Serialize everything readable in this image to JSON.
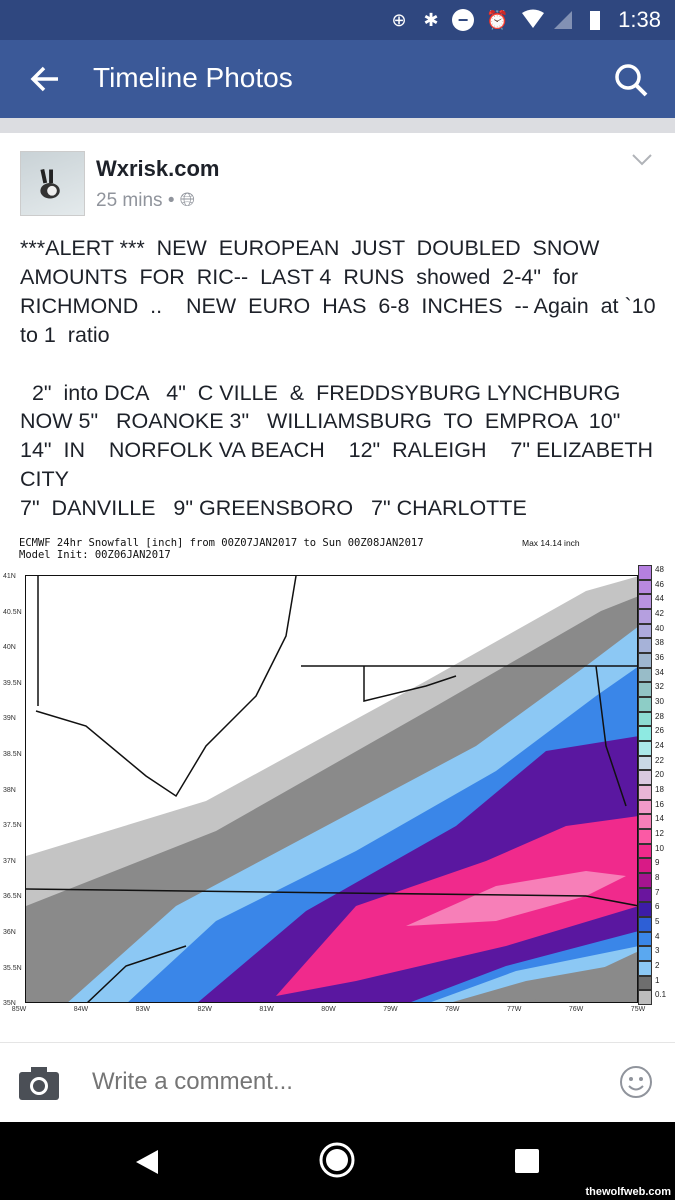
{
  "status_bar": {
    "time": "1:38",
    "icons": [
      "data-saver-icon",
      "bluetooth-icon",
      "do-not-disturb-icon",
      "alarm-icon",
      "wifi-icon",
      "cell-signal-icon",
      "battery-icon"
    ]
  },
  "app_bar": {
    "title": "Timeline Photos",
    "back_icon": "arrow-left-icon",
    "search_icon": "search-icon",
    "color": "#3b5998"
  },
  "post": {
    "author": "Wxrisk.com",
    "time": "25 mins",
    "separator": "•",
    "privacy_icon": "globe-icon",
    "text": "***ALERT ***  NEW  EUROPEAN  JUST  DOUBLED  SNOW AMOUNTS  FOR  RIC--  LAST 4  RUNS  showed  2-4\"  for RICHMOND  ..    NEW  EURO  HAS  6-8  INCHES  -- Again  at `10 to 1  ratio\n\n  2\"  into DCA   4\"  C VILLE  &  FREDDSYBURG LYNCHBURG NOW 5\"   ROANOKE 3\"   WILLIAMSBURG  TO  EMPROA  10\"  14\"  IN    NORFOLK VA BEACH    12\"  RALEIGH    7\" ELIZABETH CITY\n7\"  DANVILLE   9\" GREENSBORO   7\" CHARLOTTE"
  },
  "map": {
    "title_line1": "ECMWF 24hr Snowfall [inch] from 00Z07JAN2017 to Sun 00Z08JAN2017",
    "title_line2": "Model Init: 00Z06JAN2017",
    "max_label": "Max 14.14 inch",
    "lat_ticks": [
      "41N",
      "40.5N",
      "40N",
      "39.5N",
      "39N",
      "38.5N",
      "38N",
      "37.5N",
      "37N",
      "36.5N",
      "36N",
      "35.5N",
      "35N"
    ],
    "lon_ticks": [
      "85W",
      "84W",
      "83W",
      "82W",
      "81W",
      "80W",
      "79W",
      "78W",
      "77W",
      "76W",
      "75W"
    ],
    "colorbar": [
      {
        "label": "48",
        "color": "#b57fe0"
      },
      {
        "label": "46",
        "color": "#b889e0"
      },
      {
        "label": "44",
        "color": "#b993e0"
      },
      {
        "label": "42",
        "color": "#b59fdf"
      },
      {
        "label": "40",
        "color": "#aeaadc"
      },
      {
        "label": "38",
        "color": "#a6b2d8"
      },
      {
        "label": "36",
        "color": "#9fb6cf"
      },
      {
        "label": "34",
        "color": "#98bcc8"
      },
      {
        "label": "32",
        "color": "#92c3c4"
      },
      {
        "label": "30",
        "color": "#8dcdc6"
      },
      {
        "label": "28",
        "color": "#8ddbd2"
      },
      {
        "label": "26",
        "color": "#8eeae2"
      },
      {
        "label": "24",
        "color": "#abe8ea"
      },
      {
        "label": "22",
        "color": "#c9d8e6"
      },
      {
        "label": "20",
        "color": "#dac9e0"
      },
      {
        "label": "18",
        "color": "#e8b5d5"
      },
      {
        "label": "16",
        "color": "#f29ac8"
      },
      {
        "label": "14",
        "color": "#f77fb8"
      },
      {
        "label": "12",
        "color": "#fb5aa5"
      },
      {
        "label": "10",
        "color": "#f02a8c"
      },
      {
        "label": "9",
        "color": "#d81a86"
      },
      {
        "label": "8",
        "color": "#a5148f"
      },
      {
        "label": "7",
        "color": "#6a159e"
      },
      {
        "label": "6",
        "color": "#3d1ca8"
      },
      {
        "label": "5",
        "color": "#2d5fd6"
      },
      {
        "label": "4",
        "color": "#3a86e8"
      },
      {
        "label": "3",
        "color": "#5aa8f0"
      },
      {
        "label": "2",
        "color": "#8cc8f4"
      },
      {
        "label": "1",
        "color": "#6e6e6e"
      },
      {
        "label": "0.1",
        "color": "#bdbdbd"
      }
    ]
  },
  "comment_bar": {
    "placeholder": "Write a comment...",
    "camera_icon": "camera-icon",
    "sticker_icon": "smiley-icon"
  },
  "watermark": "thewolfweb.com"
}
